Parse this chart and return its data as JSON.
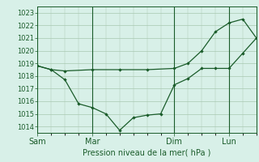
{
  "background_color": "#d8f0e8",
  "grid_color": "#a8c8b0",
  "line_color": "#1a5c2a",
  "ylabel": "Pression niveau de la mer( hPa )",
  "ylim": [
    1013.5,
    1023.5
  ],
  "yticks": [
    1014,
    1015,
    1016,
    1017,
    1018,
    1019,
    1020,
    1021,
    1022,
    1023
  ],
  "day_labels": [
    "Sam",
    "Mar",
    "Dim",
    "Lun"
  ],
  "day_positions": [
    0,
    48,
    120,
    168
  ],
  "total_hours": 192,
  "line1_x": [
    0,
    12,
    24,
    36,
    48,
    60,
    72,
    84,
    96,
    108,
    120,
    132,
    144,
    156,
    168,
    180,
    192
  ],
  "line1_y": [
    1018.8,
    1018.5,
    1017.7,
    1015.8,
    1015.5,
    1015.0,
    1013.7,
    1014.7,
    1014.9,
    1015.0,
    1017.3,
    1017.8,
    1018.6,
    1018.6,
    1018.6,
    1019.8,
    1021.0
  ],
  "line2_x": [
    0,
    12,
    24,
    48,
    72,
    96,
    120,
    132,
    144,
    156,
    168,
    180,
    192
  ],
  "line2_y": [
    1018.8,
    1018.5,
    1018.4,
    1018.5,
    1018.5,
    1018.5,
    1018.6,
    1019.0,
    1020.0,
    1021.5,
    1022.2,
    1022.5,
    1021.0
  ],
  "ylabel_fontsize": 7,
  "ytick_fontsize": 6,
  "xtick_fontsize": 7
}
